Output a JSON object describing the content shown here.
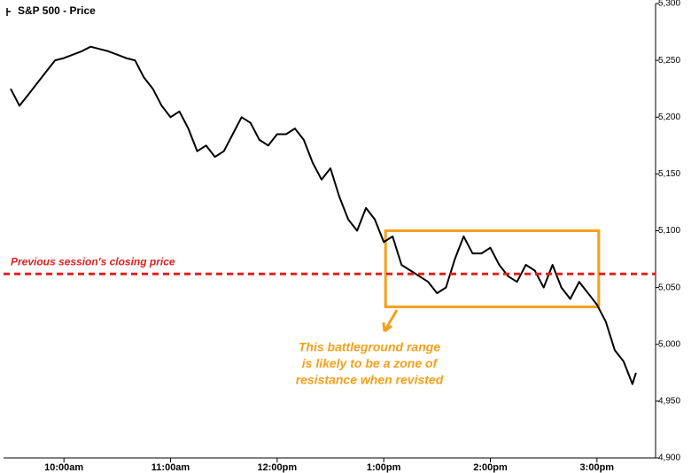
{
  "chart_data": {
    "type": "line",
    "legend_label": "S&P 500 - Price",
    "xlim": [
      566,
      933
    ],
    "xticks": [
      {
        "value": 600,
        "label": "10:00am"
      },
      {
        "value": 660,
        "label": "11:00am"
      },
      {
        "value": 720,
        "label": "12:00pm"
      },
      {
        "value": 780,
        "label": "1:00pm"
      },
      {
        "value": 840,
        "label": "2:00pm"
      },
      {
        "value": 900,
        "label": "3:00pm"
      }
    ],
    "ylim": [
      4900,
      5300
    ],
    "yticks": [
      {
        "value": 4900,
        "label": "4,900"
      },
      {
        "value": 4950,
        "label": "4,950"
      },
      {
        "value": 5000,
        "label": "5,000"
      },
      {
        "value": 5050,
        "label": "5,050"
      },
      {
        "value": 5100,
        "label": "5,100"
      },
      {
        "value": 5150,
        "label": "5,150"
      },
      {
        "value": 5200,
        "label": "5,200"
      },
      {
        "value": 5250,
        "label": "5,250"
      },
      {
        "value": 5300,
        "label": "5,300"
      }
    ],
    "series": [
      {
        "name": "S&P 500",
        "color": "#000000",
        "x": [
          570,
          575,
          580,
          585,
          590,
          595,
          600,
          605,
          610,
          615,
          620,
          625,
          630,
          635,
          640,
          645,
          650,
          655,
          660,
          665,
          670,
          675,
          680,
          685,
          690,
          695,
          700,
          705,
          710,
          715,
          720,
          725,
          730,
          735,
          740,
          745,
          750,
          755,
          760,
          765,
          770,
          775,
          780,
          785,
          790,
          795,
          800,
          805,
          810,
          815,
          820,
          825,
          830,
          835,
          840,
          845,
          850,
          855,
          860,
          865,
          870,
          875,
          880,
          885,
          890,
          895,
          900,
          905,
          910,
          915,
          920,
          922
        ],
        "values": [
          5225,
          5210,
          5220,
          5230,
          5240,
          5250,
          5252,
          5255,
          5258,
          5262,
          5260,
          5258,
          5255,
          5252,
          5250,
          5235,
          5225,
          5210,
          5200,
          5205,
          5190,
          5170,
          5175,
          5165,
          5170,
          5185,
          5200,
          5195,
          5180,
          5175,
          5185,
          5185,
          5190,
          5180,
          5160,
          5145,
          5155,
          5130,
          5110,
          5100,
          5120,
          5110,
          5090,
          5095,
          5070,
          5065,
          5060,
          5055,
          5045,
          5050,
          5075,
          5095,
          5080,
          5080,
          5085,
          5070,
          5060,
          5055,
          5070,
          5065,
          5050,
          5070,
          5050,
          5040,
          5055,
          5045,
          5035,
          5020,
          4995,
          4985,
          4965,
          4975
        ]
      }
    ],
    "reference_line": {
      "label": "Previous session's closing price",
      "value": 5062,
      "color": "#e02020"
    },
    "range_box": {
      "x": [
        781,
        901
      ],
      "y": [
        5033,
        5100
      ],
      "color": "#f5a01a",
      "text": [
        "This battleground range",
        "is likely to be a zone of",
        "resistance when revisted"
      ]
    }
  }
}
